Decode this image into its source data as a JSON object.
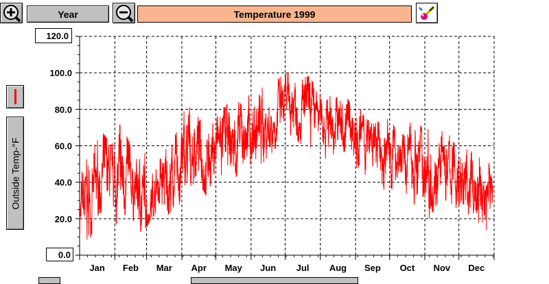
{
  "toolbar": {
    "zoom_in_icon": "magnifier-plus-icon",
    "period_label": "Year",
    "zoom_out_icon": "magnifier-minus-icon",
    "title": "Temperature 1999",
    "title_bg": "#f8b58f",
    "paint_icon": "paintbrush-icon"
  },
  "legend": {
    "series_color": "#ff0000",
    "series_label": "Outside Temp-°F"
  },
  "chart_data": {
    "type": "line",
    "title": "Temperature 1999",
    "ylabel": "Outside Temp-°F",
    "ylim": [
      0,
      120
    ],
    "y_ticks": [
      "0.0",
      "20.0",
      "40.0",
      "60.0",
      "80.0",
      "100.0",
      "120.0"
    ],
    "months": [
      "Jan",
      "Feb",
      "Mar",
      "Apr",
      "May",
      "Jun",
      "Jul",
      "Aug",
      "Sep",
      "Oct",
      "Nov",
      "Dec"
    ],
    "grid": true,
    "series": [
      {
        "color": "#ff0000",
        "days": [
          1,
          8,
          15,
          22,
          29,
          36,
          43,
          50,
          57,
          64,
          71,
          78,
          85,
          92,
          99,
          106,
          113,
          120,
          127,
          134,
          141,
          148,
          155,
          162,
          169,
          176,
          183,
          190,
          197,
          204,
          211,
          218,
          225,
          232,
          239,
          246,
          253,
          260,
          267,
          274,
          281,
          288,
          295,
          302,
          309,
          316,
          323,
          330,
          337,
          344,
          351,
          358,
          365
        ],
        "mean": [
          22,
          28,
          35,
          45,
          42,
          38,
          44,
          35,
          30,
          30,
          40,
          38,
          42,
          50,
          55,
          60,
          52,
          60,
          62,
          60,
          62,
          66,
          68,
          70,
          72,
          78,
          80,
          85,
          80,
          78,
          76,
          76,
          72,
          70,
          72,
          68,
          62,
          60,
          55,
          56,
          58,
          50,
          55,
          52,
          50,
          48,
          48,
          45,
          40,
          38,
          35,
          32,
          40
        ],
        "min": [
          12,
          3,
          20,
          25,
          20,
          15,
          25,
          15,
          12,
          20,
          25,
          22,
          25,
          30,
          38,
          40,
          32,
          45,
          42,
          38,
          45,
          50,
          48,
          50,
          55,
          60,
          62,
          65,
          60,
          55,
          58,
          52,
          48,
          50,
          48,
          45,
          40,
          38,
          35,
          38,
          32,
          30,
          28,
          25,
          20,
          28,
          30,
          20,
          22,
          20,
          15,
          10,
          22
        ],
        "max": [
          42,
          55,
          62,
          67,
          60,
          72,
          65,
          52,
          58,
          56,
          65,
          60,
          66,
          78,
          84,
          75,
          80,
          80,
          82,
          84,
          84,
          86,
          92,
          95,
          93,
          97,
          100,
          100,
          98,
          98,
          88,
          90,
          85,
          90,
          84,
          82,
          75,
          72,
          74,
          75,
          68,
          65,
          78,
          70,
          74,
          65,
          70,
          62,
          60,
          58,
          55,
          50,
          56
        ]
      }
    ]
  }
}
